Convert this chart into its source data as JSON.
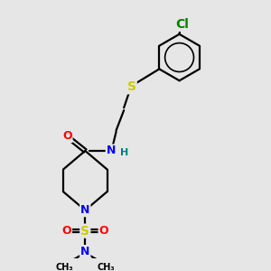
{
  "bg_color": "#e6e6e6",
  "atom_colors": {
    "C": "#000000",
    "N": "#0000ff",
    "O": "#ff0000",
    "S": "#cccc00",
    "Cl": "#008000",
    "H": "#008080"
  },
  "bond_color": "#000000",
  "bond_width": 1.6,
  "font_size": 9,
  "figsize": [
    3.0,
    3.0
  ],
  "dpi": 100,
  "xlim": [
    0,
    10
  ],
  "ylim": [
    0,
    10
  ]
}
